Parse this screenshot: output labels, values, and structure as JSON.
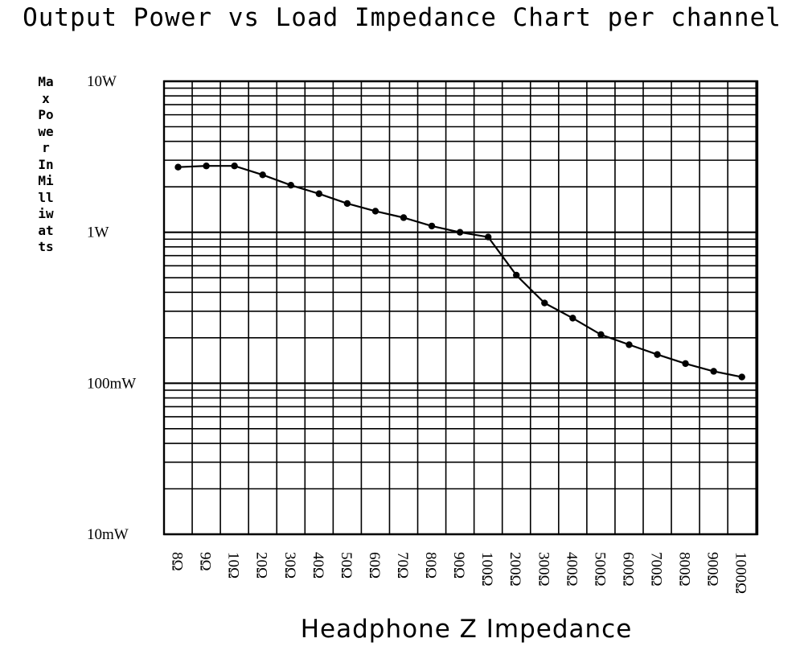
{
  "chart_data": {
    "type": "line",
    "title": "Output Power vs Load Impedance Chart per channel",
    "xlabel": "Headphone Z Impedance",
    "ylabel": "Max Power In Milliwatts",
    "y_scale": "log",
    "ylim": [
      0.01,
      10
    ],
    "grid": true,
    "y_tick_labels": [
      "10mW",
      "100mW",
      "1W",
      "10W"
    ],
    "y_tick_values": [
      0.01,
      0.1,
      1,
      10
    ],
    "categories": [
      "8Ω",
      "9Ω",
      "10Ω",
      "20Ω",
      "30Ω",
      "40Ω",
      "50Ω",
      "60Ω",
      "70Ω",
      "80Ω",
      "90Ω",
      "100Ω",
      "200Ω",
      "300Ω",
      "400Ω",
      "500Ω",
      "600Ω",
      "700Ω",
      "800Ω",
      "900Ω",
      "1000Ω"
    ],
    "series": [
      {
        "values": [
          2.7,
          2.75,
          2.75,
          2.4,
          2.05,
          1.8,
          1.55,
          1.38,
          1.25,
          1.1,
          1.0,
          0.93,
          0.52,
          0.34,
          0.27,
          0.21,
          0.18,
          0.155,
          0.135,
          0.12,
          0.11
        ]
      }
    ]
  }
}
